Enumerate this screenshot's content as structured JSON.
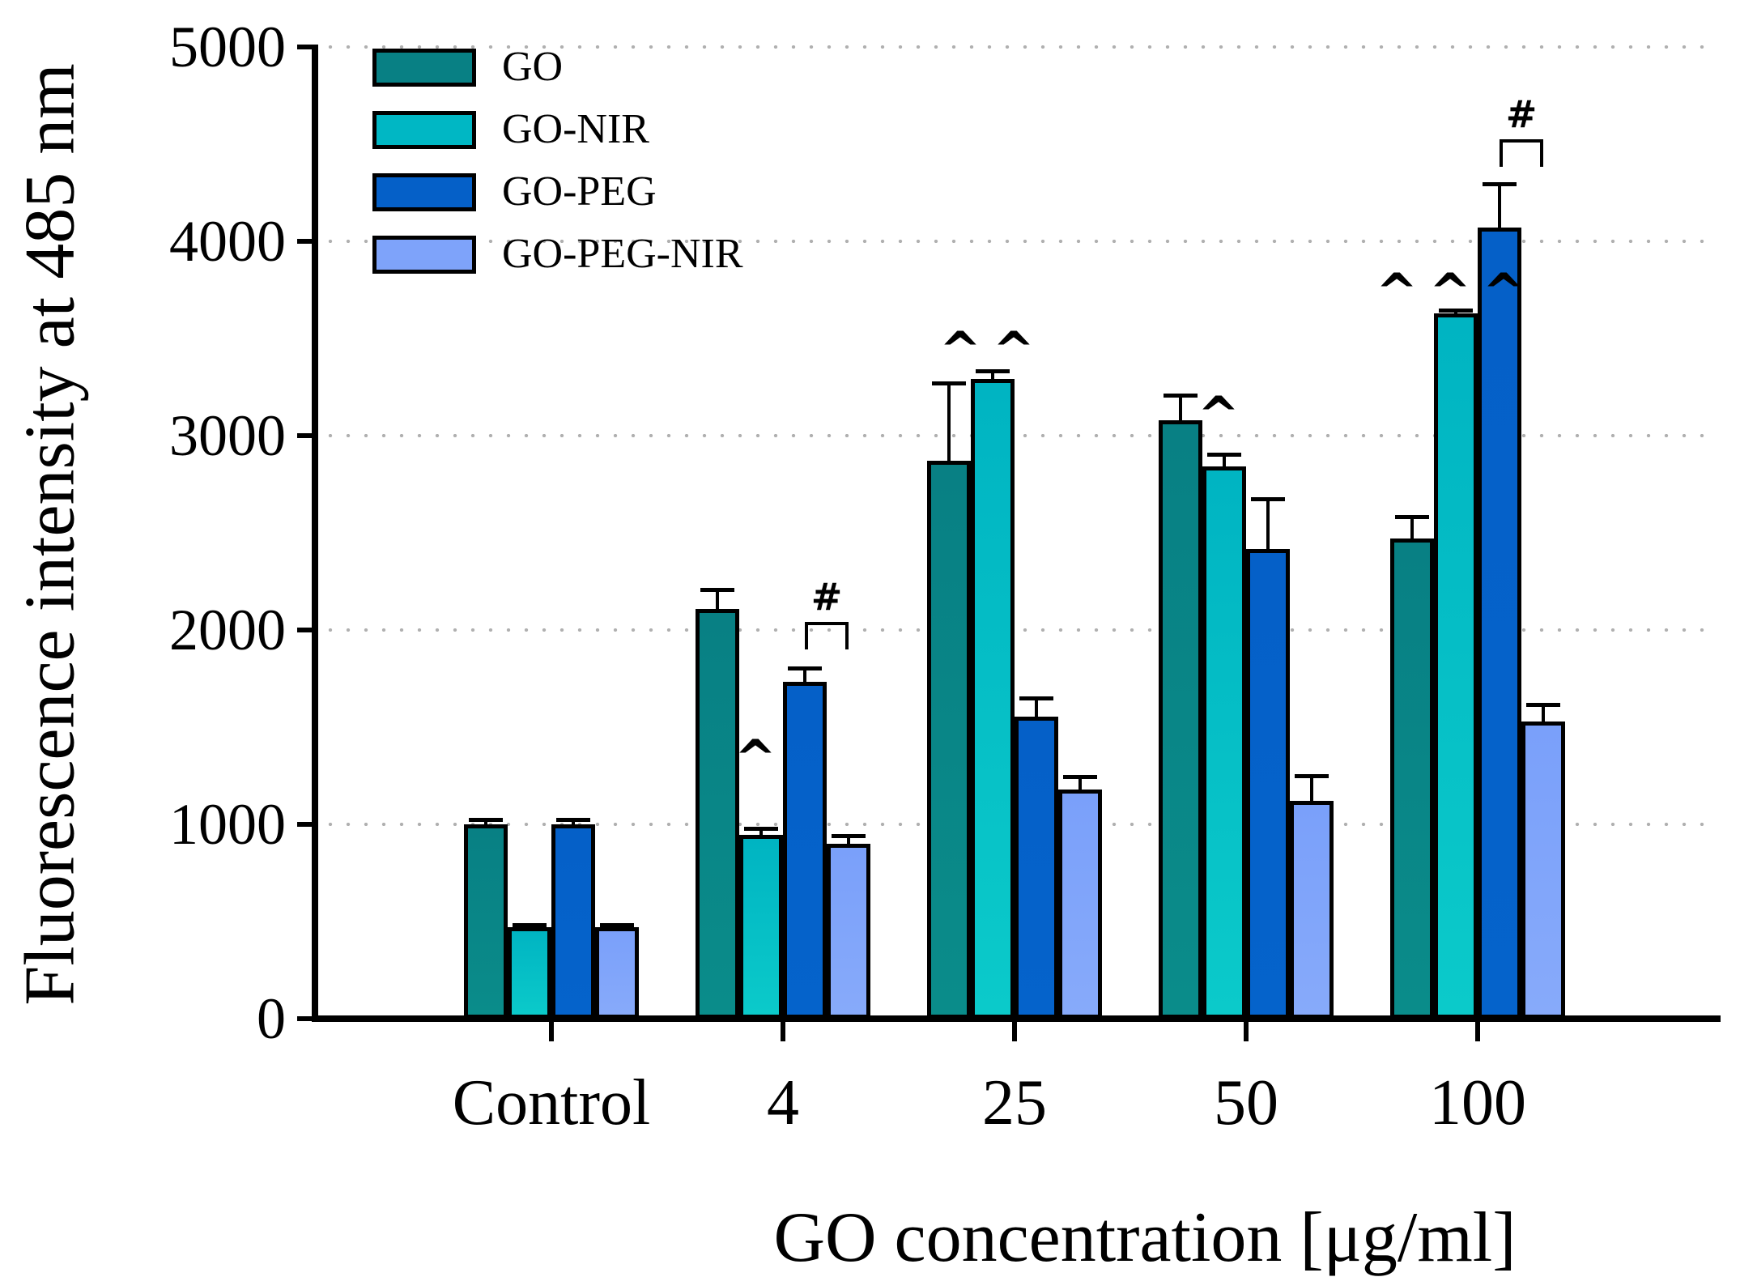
{
  "figure": {
    "kind": "grouped-bar-chart",
    "background": "#ffffff"
  },
  "y_axis": {
    "title": "Fluorescence intensity at 485 nm",
    "tick_labels": [
      "0",
      "1000",
      "2000",
      "3000",
      "4000",
      "5000"
    ],
    "min": 0,
    "max": 5000
  },
  "x_axis": {
    "title": "GO concentration [μg/ml]",
    "category_labels": [
      "Control",
      "4",
      "25",
      "50",
      "100"
    ]
  },
  "legend": {
    "position": "upper-left-inside",
    "items": [
      "GO",
      "GO-NIR",
      "GO-PEG",
      "GO-PEG-NIR"
    ]
  },
  "colors": {
    "GO": "#088084",
    "GO-NIR": "#00b7c4",
    "GO-PEG": "#0560c8",
    "GO-PEG-NIR": "#7ea3fa",
    "grid": "#b0b0b0",
    "axis": "#000000"
  },
  "chart_data": {
    "type": "bar",
    "title": "",
    "categories": [
      "Control",
      "4",
      "25",
      "50",
      "100"
    ],
    "series": [
      {
        "name": "GO",
        "color": "#088084",
        "color2": "#0a8c8a",
        "values": [
          1000,
          2110,
          2870,
          3080,
          2470
        ],
        "errors_plus": [
          25,
          100,
          400,
          130,
          115
        ]
      },
      {
        "name": "GO-NIR",
        "color": "#00b4c2",
        "color2": "#0bcaca",
        "values": [
          470,
          945,
          3290,
          2840,
          3630
        ],
        "errors_plus": [
          12,
          35,
          45,
          65,
          15
        ]
      },
      {
        "name": "GO-PEG",
        "color": "#0560c8",
        "color2": "#0563cb",
        "values": [
          1000,
          1735,
          1555,
          2415,
          4070
        ],
        "errors_plus": [
          25,
          70,
          95,
          260,
          225
        ]
      },
      {
        "name": "GO-PEG-NIR",
        "color": "#7aa0fa",
        "color2": "#87aafa",
        "values": [
          470,
          900,
          1180,
          1120,
          1530
        ],
        "errors_plus": [
          12,
          40,
          65,
          130,
          85
        ]
      }
    ],
    "ylabel": "Fluorescence intensity at 485 nm",
    "xlabel": "GO concentration [μg/ml]",
    "ylim": [
      0,
      5000
    ],
    "grid": "horizontal-dotted",
    "legend_position": "upper-left",
    "annotations": [
      {
        "symbol": "^",
        "type": "caret",
        "category": "4",
        "series": "GO-NIR",
        "y": 1400
      },
      {
        "symbol": "^^",
        "type": "caret",
        "category": "25",
        "series": "GO-NIR",
        "y": 3500
      },
      {
        "symbol": "^",
        "type": "caret",
        "category": "50",
        "series": "GO-NIR",
        "y": 3165
      },
      {
        "symbol": "^^^",
        "type": "caret",
        "category": "100",
        "series": "GO-NIR",
        "y": 3800
      },
      {
        "symbol": "#",
        "type": "bracket",
        "category": "4",
        "from_series": "GO-PEG",
        "to_series": "GO-PEG-NIR",
        "y": 2040
      },
      {
        "symbol": "#",
        "type": "bracket",
        "category": "100",
        "from_series": "GO-PEG",
        "to_series": "GO-PEG-NIR",
        "y": 4525
      }
    ]
  }
}
